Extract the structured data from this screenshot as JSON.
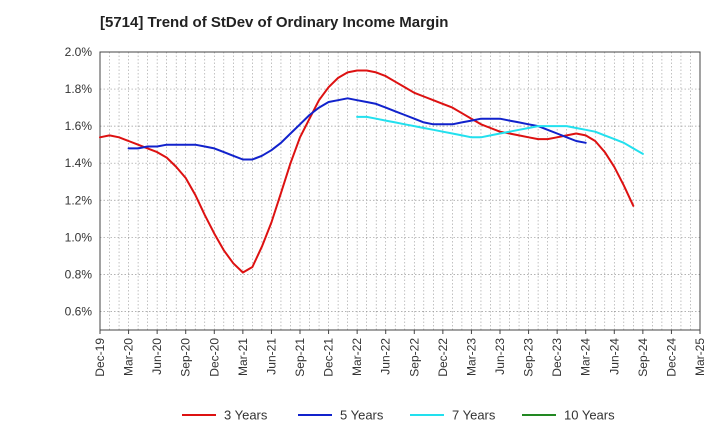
{
  "chart_data": {
    "type": "line",
    "title": "[5714]  Trend of StDev of Ordinary Income Margin",
    "xlabel": "",
    "ylabel": "",
    "x_ticks": [
      "Dec-19",
      "Mar-20",
      "Jun-20",
      "Sep-20",
      "Dec-20",
      "Mar-21",
      "Jun-21",
      "Sep-21",
      "Dec-21",
      "Mar-22",
      "Jun-22",
      "Sep-22",
      "Dec-22",
      "Mar-23",
      "Jun-23",
      "Sep-23",
      "Dec-23",
      "Mar-24",
      "Jun-24",
      "Sep-24",
      "Dec-24",
      "Mar-25"
    ],
    "y_ticks": [
      "0.6%",
      "0.8%",
      "1.0%",
      "1.2%",
      "1.4%",
      "1.6%",
      "1.8%",
      "2.0%"
    ],
    "ylim": [
      0.5,
      2.0
    ],
    "grid": true,
    "legend_position": "bottom",
    "series": [
      {
        "name": "3 Years",
        "color": "#dd1111",
        "points": [
          [
            "Dec-19",
            1.54
          ],
          [
            "Jan-20",
            1.55
          ],
          [
            "Feb-20",
            1.54
          ],
          [
            "Mar-20",
            1.52
          ],
          [
            "Apr-20",
            1.5
          ],
          [
            "May-20",
            1.48
          ],
          [
            "Jun-20",
            1.46
          ],
          [
            "Jul-20",
            1.43
          ],
          [
            "Aug-20",
            1.38
          ],
          [
            "Sep-20",
            1.32
          ],
          [
            "Oct-20",
            1.23
          ],
          [
            "Nov-20",
            1.12
          ],
          [
            "Dec-20",
            1.02
          ],
          [
            "Jan-21",
            0.93
          ],
          [
            "Feb-21",
            0.86
          ],
          [
            "Mar-21",
            0.81
          ],
          [
            "Apr-21",
            0.84
          ],
          [
            "May-21",
            0.95
          ],
          [
            "Jun-21",
            1.08
          ],
          [
            "Jul-21",
            1.24
          ],
          [
            "Aug-21",
            1.4
          ],
          [
            "Sep-21",
            1.54
          ],
          [
            "Oct-21",
            1.64
          ],
          [
            "Nov-21",
            1.74
          ],
          [
            "Dec-21",
            1.81
          ],
          [
            "Jan-22",
            1.86
          ],
          [
            "Feb-22",
            1.89
          ],
          [
            "Mar-22",
            1.9
          ],
          [
            "Apr-22",
            1.9
          ],
          [
            "May-22",
            1.89
          ],
          [
            "Jun-22",
            1.87
          ],
          [
            "Jul-22",
            1.84
          ],
          [
            "Aug-22",
            1.81
          ],
          [
            "Sep-22",
            1.78
          ],
          [
            "Oct-22",
            1.76
          ],
          [
            "Nov-22",
            1.74
          ],
          [
            "Dec-22",
            1.72
          ],
          [
            "Jan-23",
            1.7
          ],
          [
            "Feb-23",
            1.67
          ],
          [
            "Mar-23",
            1.64
          ],
          [
            "Apr-23",
            1.61
          ],
          [
            "May-23",
            1.59
          ],
          [
            "Jun-23",
            1.57
          ],
          [
            "Jul-23",
            1.56
          ],
          [
            "Aug-23",
            1.55
          ],
          [
            "Sep-23",
            1.54
          ],
          [
            "Oct-23",
            1.53
          ],
          [
            "Nov-23",
            1.53
          ],
          [
            "Dec-23",
            1.54
          ],
          [
            "Jan-24",
            1.55
          ],
          [
            "Feb-24",
            1.56
          ],
          [
            "Mar-24",
            1.55
          ],
          [
            "Apr-24",
            1.52
          ],
          [
            "May-24",
            1.46
          ],
          [
            "Jun-24",
            1.38
          ],
          [
            "Jul-24",
            1.28
          ],
          [
            "Aug-24",
            1.17
          ]
        ]
      },
      {
        "name": "5 Years",
        "color": "#1122cc",
        "points": [
          [
            "Mar-20",
            1.48
          ],
          [
            "Apr-20",
            1.48
          ],
          [
            "May-20",
            1.49
          ],
          [
            "Jun-20",
            1.49
          ],
          [
            "Jul-20",
            1.5
          ],
          [
            "Aug-20",
            1.5
          ],
          [
            "Sep-20",
            1.5
          ],
          [
            "Oct-20",
            1.5
          ],
          [
            "Nov-20",
            1.49
          ],
          [
            "Dec-20",
            1.48
          ],
          [
            "Jan-21",
            1.46
          ],
          [
            "Feb-21",
            1.44
          ],
          [
            "Mar-21",
            1.42
          ],
          [
            "Apr-21",
            1.42
          ],
          [
            "May-21",
            1.44
          ],
          [
            "Jun-21",
            1.47
          ],
          [
            "Jul-21",
            1.51
          ],
          [
            "Aug-21",
            1.56
          ],
          [
            "Sep-21",
            1.61
          ],
          [
            "Oct-21",
            1.66
          ],
          [
            "Nov-21",
            1.7
          ],
          [
            "Dec-21",
            1.73
          ],
          [
            "Jan-22",
            1.74
          ],
          [
            "Feb-22",
            1.75
          ],
          [
            "Mar-22",
            1.74
          ],
          [
            "Apr-22",
            1.73
          ],
          [
            "May-22",
            1.72
          ],
          [
            "Jun-22",
            1.7
          ],
          [
            "Jul-22",
            1.68
          ],
          [
            "Aug-22",
            1.66
          ],
          [
            "Sep-22",
            1.64
          ],
          [
            "Oct-22",
            1.62
          ],
          [
            "Nov-22",
            1.61
          ],
          [
            "Dec-22",
            1.61
          ],
          [
            "Jan-23",
            1.61
          ],
          [
            "Feb-23",
            1.62
          ],
          [
            "Mar-23",
            1.63
          ],
          [
            "Apr-23",
            1.64
          ],
          [
            "May-23",
            1.64
          ],
          [
            "Jun-23",
            1.64
          ],
          [
            "Jul-23",
            1.63
          ],
          [
            "Aug-23",
            1.62
          ],
          [
            "Sep-23",
            1.61
          ],
          [
            "Oct-23",
            1.6
          ],
          [
            "Nov-23",
            1.58
          ],
          [
            "Dec-23",
            1.56
          ],
          [
            "Jan-24",
            1.54
          ],
          [
            "Feb-24",
            1.52
          ],
          [
            "Mar-24",
            1.51
          ]
        ]
      },
      {
        "name": "7 Years",
        "color": "#22e0ee",
        "points": [
          [
            "Mar-22",
            1.65
          ],
          [
            "Apr-22",
            1.65
          ],
          [
            "May-22",
            1.64
          ],
          [
            "Jun-22",
            1.63
          ],
          [
            "Jul-22",
            1.62
          ],
          [
            "Aug-22",
            1.61
          ],
          [
            "Sep-22",
            1.6
          ],
          [
            "Oct-22",
            1.59
          ],
          [
            "Nov-22",
            1.58
          ],
          [
            "Dec-22",
            1.57
          ],
          [
            "Jan-23",
            1.56
          ],
          [
            "Feb-23",
            1.55
          ],
          [
            "Mar-23",
            1.54
          ],
          [
            "Apr-23",
            1.54
          ],
          [
            "May-23",
            1.55
          ],
          [
            "Jun-23",
            1.56
          ],
          [
            "Jul-23",
            1.57
          ],
          [
            "Aug-23",
            1.58
          ],
          [
            "Sep-23",
            1.59
          ],
          [
            "Oct-23",
            1.6
          ],
          [
            "Nov-23",
            1.6
          ],
          [
            "Dec-23",
            1.6
          ],
          [
            "Jan-24",
            1.6
          ],
          [
            "Feb-24",
            1.59
          ],
          [
            "Mar-24",
            1.58
          ],
          [
            "Apr-24",
            1.57
          ],
          [
            "May-24",
            1.55
          ],
          [
            "Jun-24",
            1.53
          ],
          [
            "Jul-24",
            1.51
          ],
          [
            "Aug-24",
            1.48
          ],
          [
            "Sep-24",
            1.45
          ]
        ]
      },
      {
        "name": "10 Years",
        "color": "#228822",
        "points": []
      }
    ]
  }
}
